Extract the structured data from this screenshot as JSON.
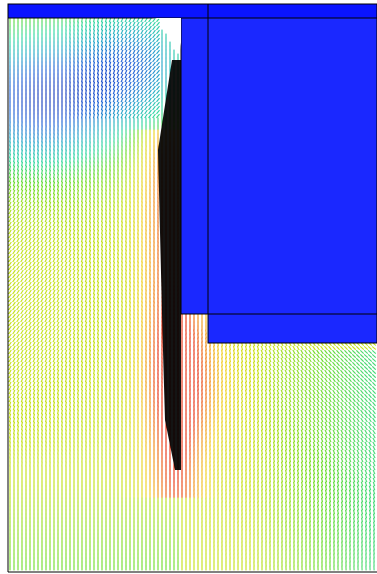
{
  "colors": {
    "tool": "#0a14ff",
    "die": "#1a28ff",
    "outline": "#000000",
    "background": "#ffffff",
    "shadow": "#000000"
  },
  "colormap": [
    "#1424a8",
    "#1f5fd6",
    "#22a8c8",
    "#2fd8a0",
    "#6cdc2a",
    "#c8e018",
    "#f0d020",
    "#f08a14",
    "#e83010"
  ]
}
